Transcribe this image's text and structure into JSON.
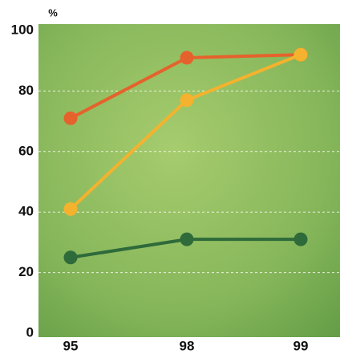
{
  "chart_data": {
    "type": "line",
    "y_label": "%",
    "categories": [
      "95",
      "98",
      "99"
    ],
    "series": [
      {
        "color": "#e5622c",
        "values": [
          71,
          91,
          92
        ]
      },
      {
        "color": "#f4b22e",
        "values": [
          41,
          77,
          92
        ]
      },
      {
        "color": "#2e6a3a",
        "values": [
          25,
          31,
          31
        ]
      }
    ],
    "ylim": [
      0,
      100
    ],
    "yticks": [
      0,
      20,
      40,
      60,
      80,
      100
    ],
    "grid": true
  }
}
